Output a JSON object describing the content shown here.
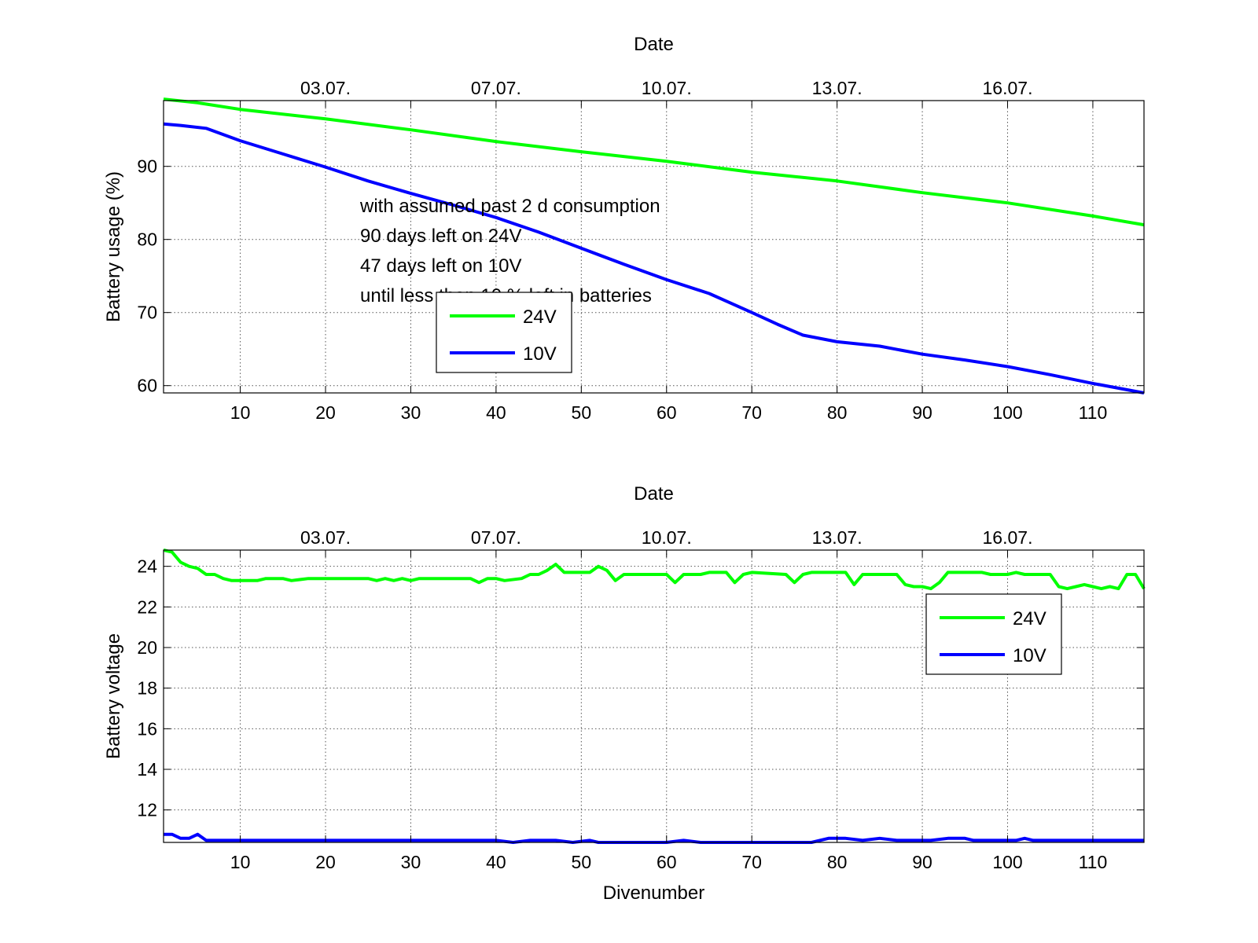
{
  "chart_data": [
    {
      "type": "line",
      "title": "",
      "top_axis_label": "Date",
      "top_ticks": [
        {
          "x": 20,
          "label": "03.07."
        },
        {
          "x": 40,
          "label": "07.07."
        },
        {
          "x": 60,
          "label": "10.07."
        },
        {
          "x": 80,
          "label": "13.07."
        },
        {
          "x": 100,
          "label": "16.07."
        }
      ],
      "xlabel": "",
      "ylabel": "Battery usage (%)",
      "xlim": [
        1,
        116
      ],
      "ylim": [
        59,
        99
      ],
      "xticks": [
        10,
        20,
        30,
        40,
        50,
        60,
        70,
        80,
        90,
        100,
        110
      ],
      "yticks": [
        60,
        70,
        80,
        90
      ],
      "grid": true,
      "legend_position": "center-left",
      "annotation": [
        "with assumed past 2 d consumption",
        "90 days left on 24V",
        "47 days left on 10V",
        "until less than 10 % left in batteries"
      ],
      "series": [
        {
          "name": "24V",
          "color": "#00ff00",
          "points": [
            [
              1,
              99.2
            ],
            [
              5,
              98.7
            ],
            [
              10,
              97.8
            ],
            [
              20,
              96.5
            ],
            [
              30,
              95
            ],
            [
              40,
              93.4
            ],
            [
              50,
              92
            ],
            [
              60,
              90.7
            ],
            [
              70,
              89.2
            ],
            [
              80,
              88
            ],
            [
              90,
              86.4
            ],
            [
              100,
              85
            ],
            [
              110,
              83.2
            ],
            [
              116,
              82
            ]
          ]
        },
        {
          "name": "10V",
          "color": "#0000ff",
          "points": [
            [
              1,
              95.8
            ],
            [
              3,
              95.6
            ],
            [
              6,
              95.2
            ],
            [
              10,
              93.5
            ],
            [
              15,
              91.7
            ],
            [
              20,
              89.9
            ],
            [
              25,
              88
            ],
            [
              30,
              86.3
            ],
            [
              35,
              84.7
            ],
            [
              40,
              83
            ],
            [
              45,
              81
            ],
            [
              50,
              78.8
            ],
            [
              55,
              76.6
            ],
            [
              60,
              74.5
            ],
            [
              65,
              72.6
            ],
            [
              70,
              70
            ],
            [
              73,
              68.4
            ],
            [
              76,
              66.9
            ],
            [
              80,
              66
            ],
            [
              85,
              65.4
            ],
            [
              90,
              64.3
            ],
            [
              95,
              63.5
            ],
            [
              100,
              62.6
            ],
            [
              105,
              61.5
            ],
            [
              110,
              60.3
            ],
            [
              116,
              59
            ]
          ]
        }
      ]
    },
    {
      "type": "line",
      "title": "",
      "top_axis_label": "Date",
      "top_ticks": [
        {
          "x": 20,
          "label": "03.07."
        },
        {
          "x": 40,
          "label": "07.07."
        },
        {
          "x": 60,
          "label": "10.07."
        },
        {
          "x": 80,
          "label": "13.07."
        },
        {
          "x": 100,
          "label": "16.07."
        }
      ],
      "xlabel": "Divenumber",
      "ylabel": "Battery voltage",
      "xlim": [
        1,
        116
      ],
      "ylim": [
        10.4,
        24.8
      ],
      "xticks": [
        10,
        20,
        30,
        40,
        50,
        60,
        70,
        80,
        90,
        100,
        110
      ],
      "yticks": [
        12,
        14,
        16,
        18,
        20,
        22,
        24
      ],
      "grid": true,
      "legend_position": "upper-right",
      "series": [
        {
          "name": "24V",
          "color": "#00ff00",
          "points": [
            [
              1,
              24.8
            ],
            [
              2,
              24.7
            ],
            [
              3,
              24.2
            ],
            [
              4,
              24.0
            ],
            [
              5,
              23.9
            ],
            [
              6,
              23.6
            ],
            [
              7,
              23.6
            ],
            [
              8,
              23.4
            ],
            [
              9,
              23.3
            ],
            [
              12,
              23.3
            ],
            [
              13,
              23.4
            ],
            [
              15,
              23.4
            ],
            [
              16,
              23.3
            ],
            [
              18,
              23.4
            ],
            [
              25,
              23.4
            ],
            [
              26,
              23.3
            ],
            [
              27,
              23.4
            ],
            [
              28,
              23.3
            ],
            [
              29,
              23.4
            ],
            [
              30,
              23.3
            ],
            [
              31,
              23.4
            ],
            [
              37,
              23.4
            ],
            [
              38,
              23.2
            ],
            [
              39,
              23.4
            ],
            [
              40,
              23.4
            ],
            [
              41,
              23.3
            ],
            [
              43,
              23.4
            ],
            [
              44,
              23.6
            ],
            [
              45,
              23.6
            ],
            [
              46,
              23.8
            ],
            [
              47,
              24.1
            ],
            [
              48,
              23.7
            ],
            [
              51,
              23.7
            ],
            [
              52,
              24.0
            ],
            [
              53,
              23.8
            ],
            [
              54,
              23.3
            ],
            [
              55,
              23.6
            ],
            [
              60,
              23.6
            ],
            [
              61,
              23.2
            ],
            [
              62,
              23.6
            ],
            [
              64,
              23.6
            ],
            [
              65,
              23.7
            ],
            [
              67,
              23.7
            ],
            [
              68,
              23.2
            ],
            [
              69,
              23.6
            ],
            [
              70,
              23.7
            ],
            [
              74,
              23.6
            ],
            [
              75,
              23.2
            ],
            [
              76,
              23.6
            ],
            [
              77,
              23.7
            ],
            [
              81,
              23.7
            ],
            [
              82,
              23.1
            ],
            [
              83,
              23.6
            ],
            [
              87,
              23.6
            ],
            [
              88,
              23.1
            ],
            [
              89,
              23.0
            ],
            [
              90,
              23.0
            ],
            [
              91,
              22.9
            ],
            [
              92,
              23.2
            ],
            [
              93,
              23.7
            ],
            [
              97,
              23.7
            ],
            [
              98,
              23.6
            ],
            [
              100,
              23.6
            ],
            [
              101,
              23.7
            ],
            [
              102,
              23.6
            ],
            [
              105,
              23.6
            ],
            [
              106,
              23.0
            ],
            [
              107,
              22.9
            ],
            [
              108,
              23.0
            ],
            [
              109,
              23.1
            ],
            [
              110,
              23.0
            ],
            [
              111,
              22.9
            ],
            [
              112,
              23.0
            ],
            [
              113,
              22.9
            ],
            [
              114,
              23.6
            ],
            [
              115,
              23.6
            ],
            [
              116,
              22.9
            ]
          ]
        },
        {
          "name": "10V",
          "color": "#0000ff",
          "points": [
            [
              1,
              10.8
            ],
            [
              2,
              10.8
            ],
            [
              3,
              10.6
            ],
            [
              4,
              10.6
            ],
            [
              5,
              10.8
            ],
            [
              6,
              10.5
            ],
            [
              40,
              10.5
            ],
            [
              42,
              10.4
            ],
            [
              44,
              10.5
            ],
            [
              47,
              10.5
            ],
            [
              49,
              10.4
            ],
            [
              51,
              10.5
            ],
            [
              52,
              10.4
            ],
            [
              60,
              10.4
            ],
            [
              62,
              10.5
            ],
            [
              64,
              10.4
            ],
            [
              77,
              10.4
            ],
            [
              79,
              10.6
            ],
            [
              81,
              10.6
            ],
            [
              83,
              10.5
            ],
            [
              85,
              10.6
            ],
            [
              87,
              10.5
            ],
            [
              91,
              10.5
            ],
            [
              93,
              10.6
            ],
            [
              95,
              10.6
            ],
            [
              96,
              10.5
            ],
            [
              101,
              10.5
            ],
            [
              102,
              10.6
            ],
            [
              103,
              10.5
            ],
            [
              116,
              10.5
            ]
          ]
        }
      ]
    }
  ]
}
